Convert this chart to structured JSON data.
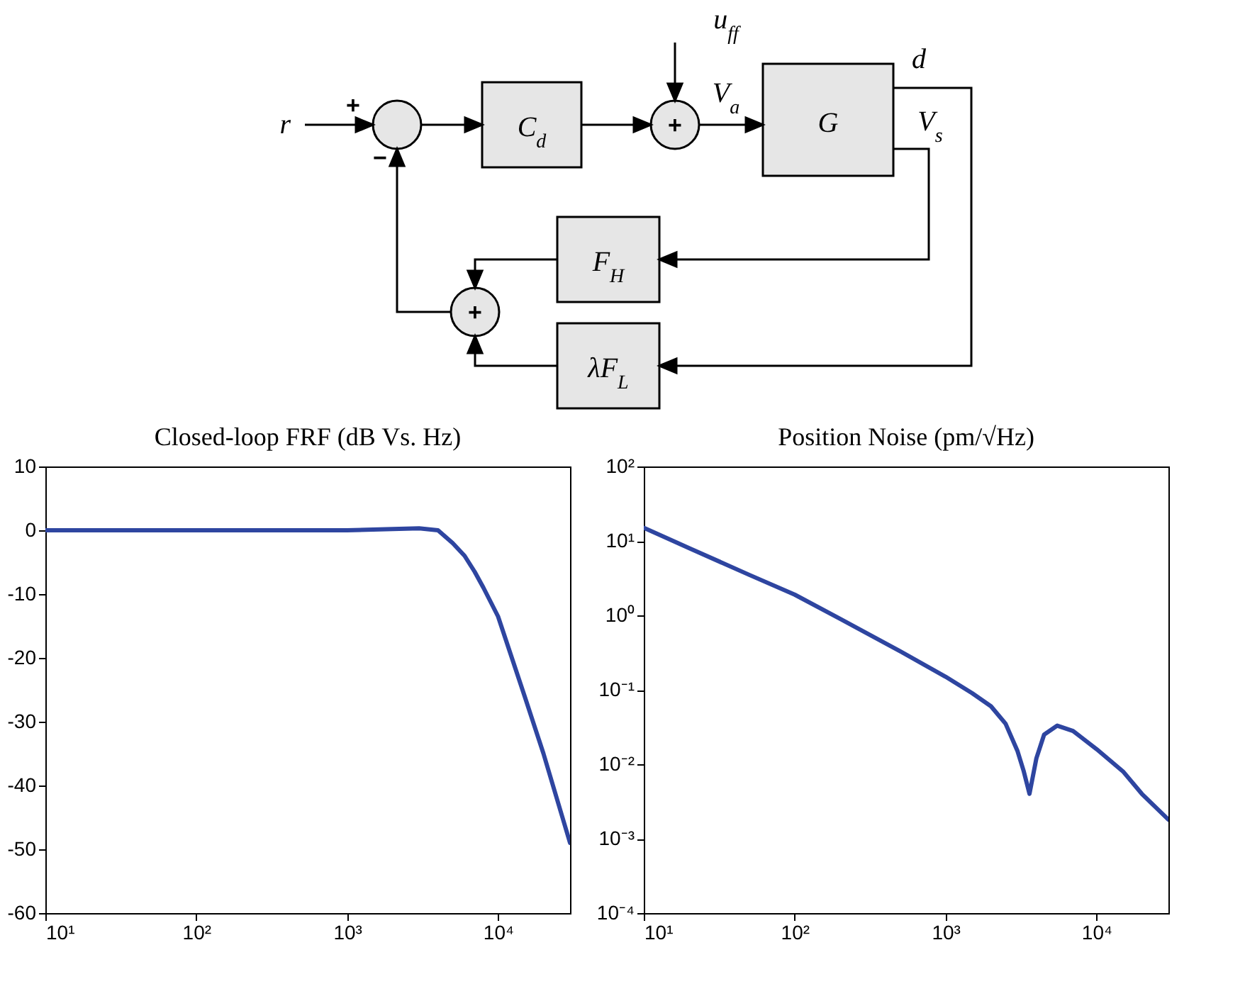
{
  "chart_data": [
    {
      "type": "other",
      "annotations": [
        "r",
        "+",
        "−",
        "C$_{d}$",
        "+",
        "u$_{ff}$",
        "V$_{a}$",
        "G",
        "d",
        "V$_{s}$",
        "F$_{H}$",
        "λF$_{L}$",
        "+"
      ]
    },
    {
      "type": "line",
      "title": "Closed-loop FRF (dB Vs. Hz)",
      "log": "x",
      "x": [
        10,
        100,
        1000,
        2000,
        3000,
        4000,
        5000,
        6000,
        7000,
        8000,
        10000,
        15000,
        20000,
        30000
      ],
      "series": [
        {
          "color": "#2e45a0",
          "values": [
            0,
            0,
            0,
            0.2,
            0.3,
            0,
            -2,
            -4,
            -6.5,
            -9,
            -13.5,
            -26,
            -35,
            -49
          ]
        }
      ],
      "xlim": [
        10,
        30000
      ],
      "xticks": [
        {
          "value": 10,
          "label": "10¹"
        },
        {
          "value": 100,
          "label": "10²"
        },
        {
          "value": 1000,
          "label": "10³"
        },
        {
          "value": 10000,
          "label": "10⁴"
        }
      ],
      "ylim": [
        -60,
        10
      ],
      "yticks": [
        10,
        0,
        -10,
        -20,
        -30,
        -40,
        -50,
        -60
      ]
    },
    {
      "type": "line",
      "title": "Position Noise (pm/√Hz)",
      "log": "xy",
      "x": [
        10,
        20,
        50,
        100,
        200,
        500,
        1000,
        1500,
        2000,
        2500,
        3000,
        3300,
        3600,
        4000,
        4500,
        5500,
        7000,
        10000,
        15000,
        20000,
        30000
      ],
      "series": [
        {
          "color": "#2e45a0",
          "values": [
            15,
            8,
            3.5,
            1.9,
            0.9,
            0.33,
            0.15,
            0.09,
            0.06,
            0.035,
            0.015,
            0.008,
            0.004,
            0.012,
            0.025,
            0.033,
            0.028,
            0.016,
            0.008,
            0.004,
            0.0018
          ]
        }
      ],
      "xlim": [
        10,
        30000
      ],
      "xticks": [
        {
          "value": 10,
          "label": "10¹"
        },
        {
          "value": 100,
          "label": "10²"
        },
        {
          "value": 1000,
          "label": "10³"
        },
        {
          "value": 10000,
          "label": "10⁴"
        }
      ],
      "ylim": [
        0.0001,
        100
      ],
      "yticks": [
        {
          "value": 100,
          "label": "10²"
        },
        {
          "value": 10,
          "label": "10¹"
        },
        {
          "value": 1,
          "label": "10⁰"
        },
        {
          "value": 0.1,
          "label": "10⁻¹"
        },
        {
          "value": 0.01,
          "label": "10⁻²"
        },
        {
          "value": 0.001,
          "label": "10⁻³"
        },
        {
          "value": 0.0001,
          "label": "10⁻⁴"
        }
      ]
    }
  ]
}
